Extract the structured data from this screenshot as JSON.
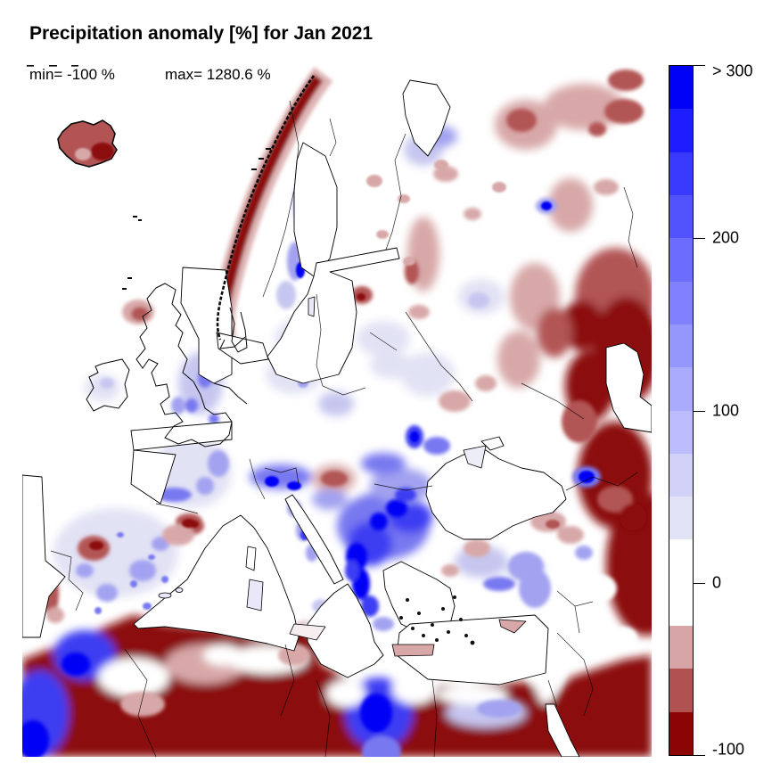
{
  "title": "Precipitation anomaly [%] for Jan 2021",
  "stats": {
    "min_label": "min= -100 %",
    "max_label": "max= 1280.6 %"
  },
  "chart_data": {
    "type": "heatmap",
    "title": "Precipitation anomaly [%] for Jan 2021",
    "variable": "precipitation anomaly",
    "units": "%",
    "period": "Jan 2021",
    "region_shown": "Europe, North Africa, Middle East, western Russia",
    "min_value": -100,
    "max_value": 1280.6,
    "colorbar": {
      "orientation": "vertical",
      "position": "right",
      "value_range": [
        -100,
        300
      ],
      "top_open_ended": true,
      "bin_width": 25,
      "ticks": [
        {
          "label": "> 300",
          "value": 300,
          "position": 0
        },
        {
          "label": "200",
          "value": 200,
          "position": 0.25
        },
        {
          "label": "100",
          "value": 100,
          "position": 0.5
        },
        {
          "label": "0",
          "value": 0,
          "position": 0.75
        },
        {
          "label": "-100",
          "value": -100,
          "position": 1
        }
      ],
      "segments_top_to_bottom": [
        "#0101f6",
        "#1d1dfd",
        "#3a3afd",
        "#5353fd",
        "#6d6dfd",
        "#8181fd",
        "#9697fd",
        "#ababfd",
        "#bdbdfd",
        "#d1d1f8",
        "#e3e3f8",
        "#ffffff",
        "#ffffff",
        "#d7a5a5",
        "#b05252",
        "#8b0505"
      ]
    },
    "regional_anomalies_estimated_pct": [
      {
        "region": "Iceland",
        "anomaly": -70
      },
      {
        "region": "Norwegian coast",
        "anomaly": -90
      },
      {
        "region": "Swedish mountains",
        "anomaly": 150
      },
      {
        "region": "Finland / Baltic states",
        "anomaly": 15
      },
      {
        "region": "British Isles",
        "anomaly": 60
      },
      {
        "region": "France / Central Europe",
        "anomaly": 40
      },
      {
        "region": "Alps",
        "anomaly": 120
      },
      {
        "region": "Iberia (speckled)",
        "anomaly": 60
      },
      {
        "region": "NW Iberia red patch",
        "anomaly": -60
      },
      {
        "region": "Balkans and northern Greece",
        "anomaly": 280
      },
      {
        "region": "Hungary red patch",
        "anomaly": -50
      },
      {
        "region": "Turkey",
        "anomaly": 25
      },
      {
        "region": "Caucasus blue spot",
        "anomaly": 300
      },
      {
        "region": "NE European Russia",
        "anomaly": -55
      },
      {
        "region": "Caspian / Kazakhstan",
        "anomaly": -95
      },
      {
        "region": "Sahara (North Africa)",
        "anomaly": -100
      },
      {
        "region": "Morocco coast",
        "anomaly": 220
      },
      {
        "region": "Gulf of Sidra, Libya",
        "anomaly": 290
      },
      {
        "region": "Egyptian coast",
        "anomaly": 80
      },
      {
        "region": "Middle East interior",
        "anomaly": -100
      }
    ]
  }
}
